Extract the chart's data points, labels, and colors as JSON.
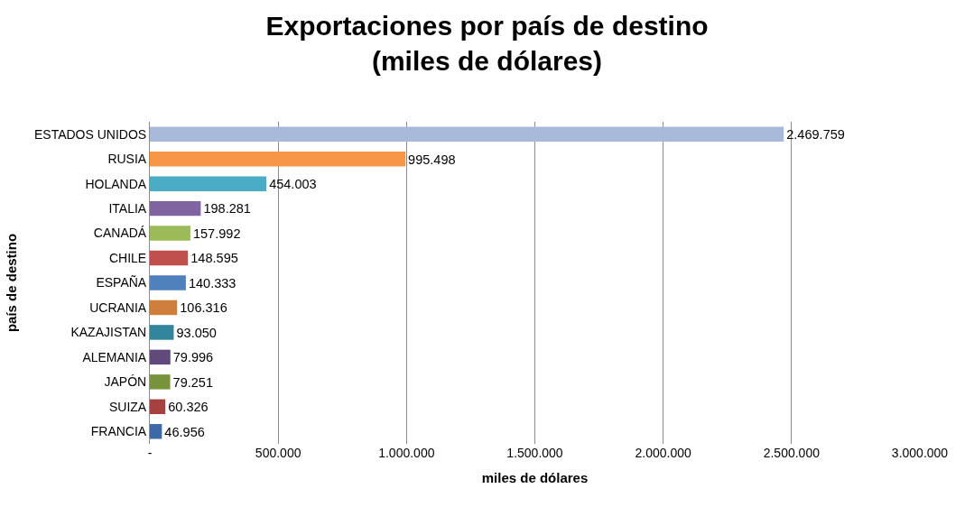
{
  "chart_data": {
    "type": "bar",
    "orientation": "horizontal",
    "title": "Exportaciones por país de destino\n(miles de dólares)",
    "xlabel": "miles de dólares",
    "ylabel": "país de destino",
    "categories": [
      "ESTADOS UNIDOS",
      "RUSIA",
      "HOLANDA",
      "ITALIA",
      "CANADÁ",
      "CHILE",
      "ESPAÑA",
      "UCRANIA",
      "KAZAJISTAN",
      "ALEMANIA",
      "JAPÓN",
      "SUIZA",
      "FRANCIA"
    ],
    "values": [
      2469759,
      995498,
      454003,
      198281,
      157992,
      148595,
      140333,
      106316,
      93050,
      79996,
      79251,
      60326,
      46956
    ],
    "value_labels": [
      "2.469.759",
      "995.498",
      "454.003",
      "198.281",
      "157.992",
      "148.595",
      "140.333",
      "106.316",
      "93.050",
      "79.996",
      "79.251",
      "60.326",
      "46.956"
    ],
    "colors": [
      "#a9b9d9",
      "#f79646",
      "#4bacc6",
      "#8064a2",
      "#9bbb59",
      "#c0504d",
      "#4f81bd",
      "#d07f3a",
      "#31859c",
      "#604a7b",
      "#77933c",
      "#a5413f",
      "#3c6aa6"
    ],
    "xlim": [
      0,
      3000000
    ],
    "xticks": [
      {
        "value": 0,
        "label": "-"
      },
      {
        "value": 500000,
        "label": "500.000"
      },
      {
        "value": 1000000,
        "label": "1.000.000"
      },
      {
        "value": 1500000,
        "label": "1.500.000"
      },
      {
        "value": 2000000,
        "label": "2.000.000"
      },
      {
        "value": 2500000,
        "label": "2.500.000"
      },
      {
        "value": 3000000,
        "label": "3.000.000"
      }
    ],
    "grid": "x"
  }
}
